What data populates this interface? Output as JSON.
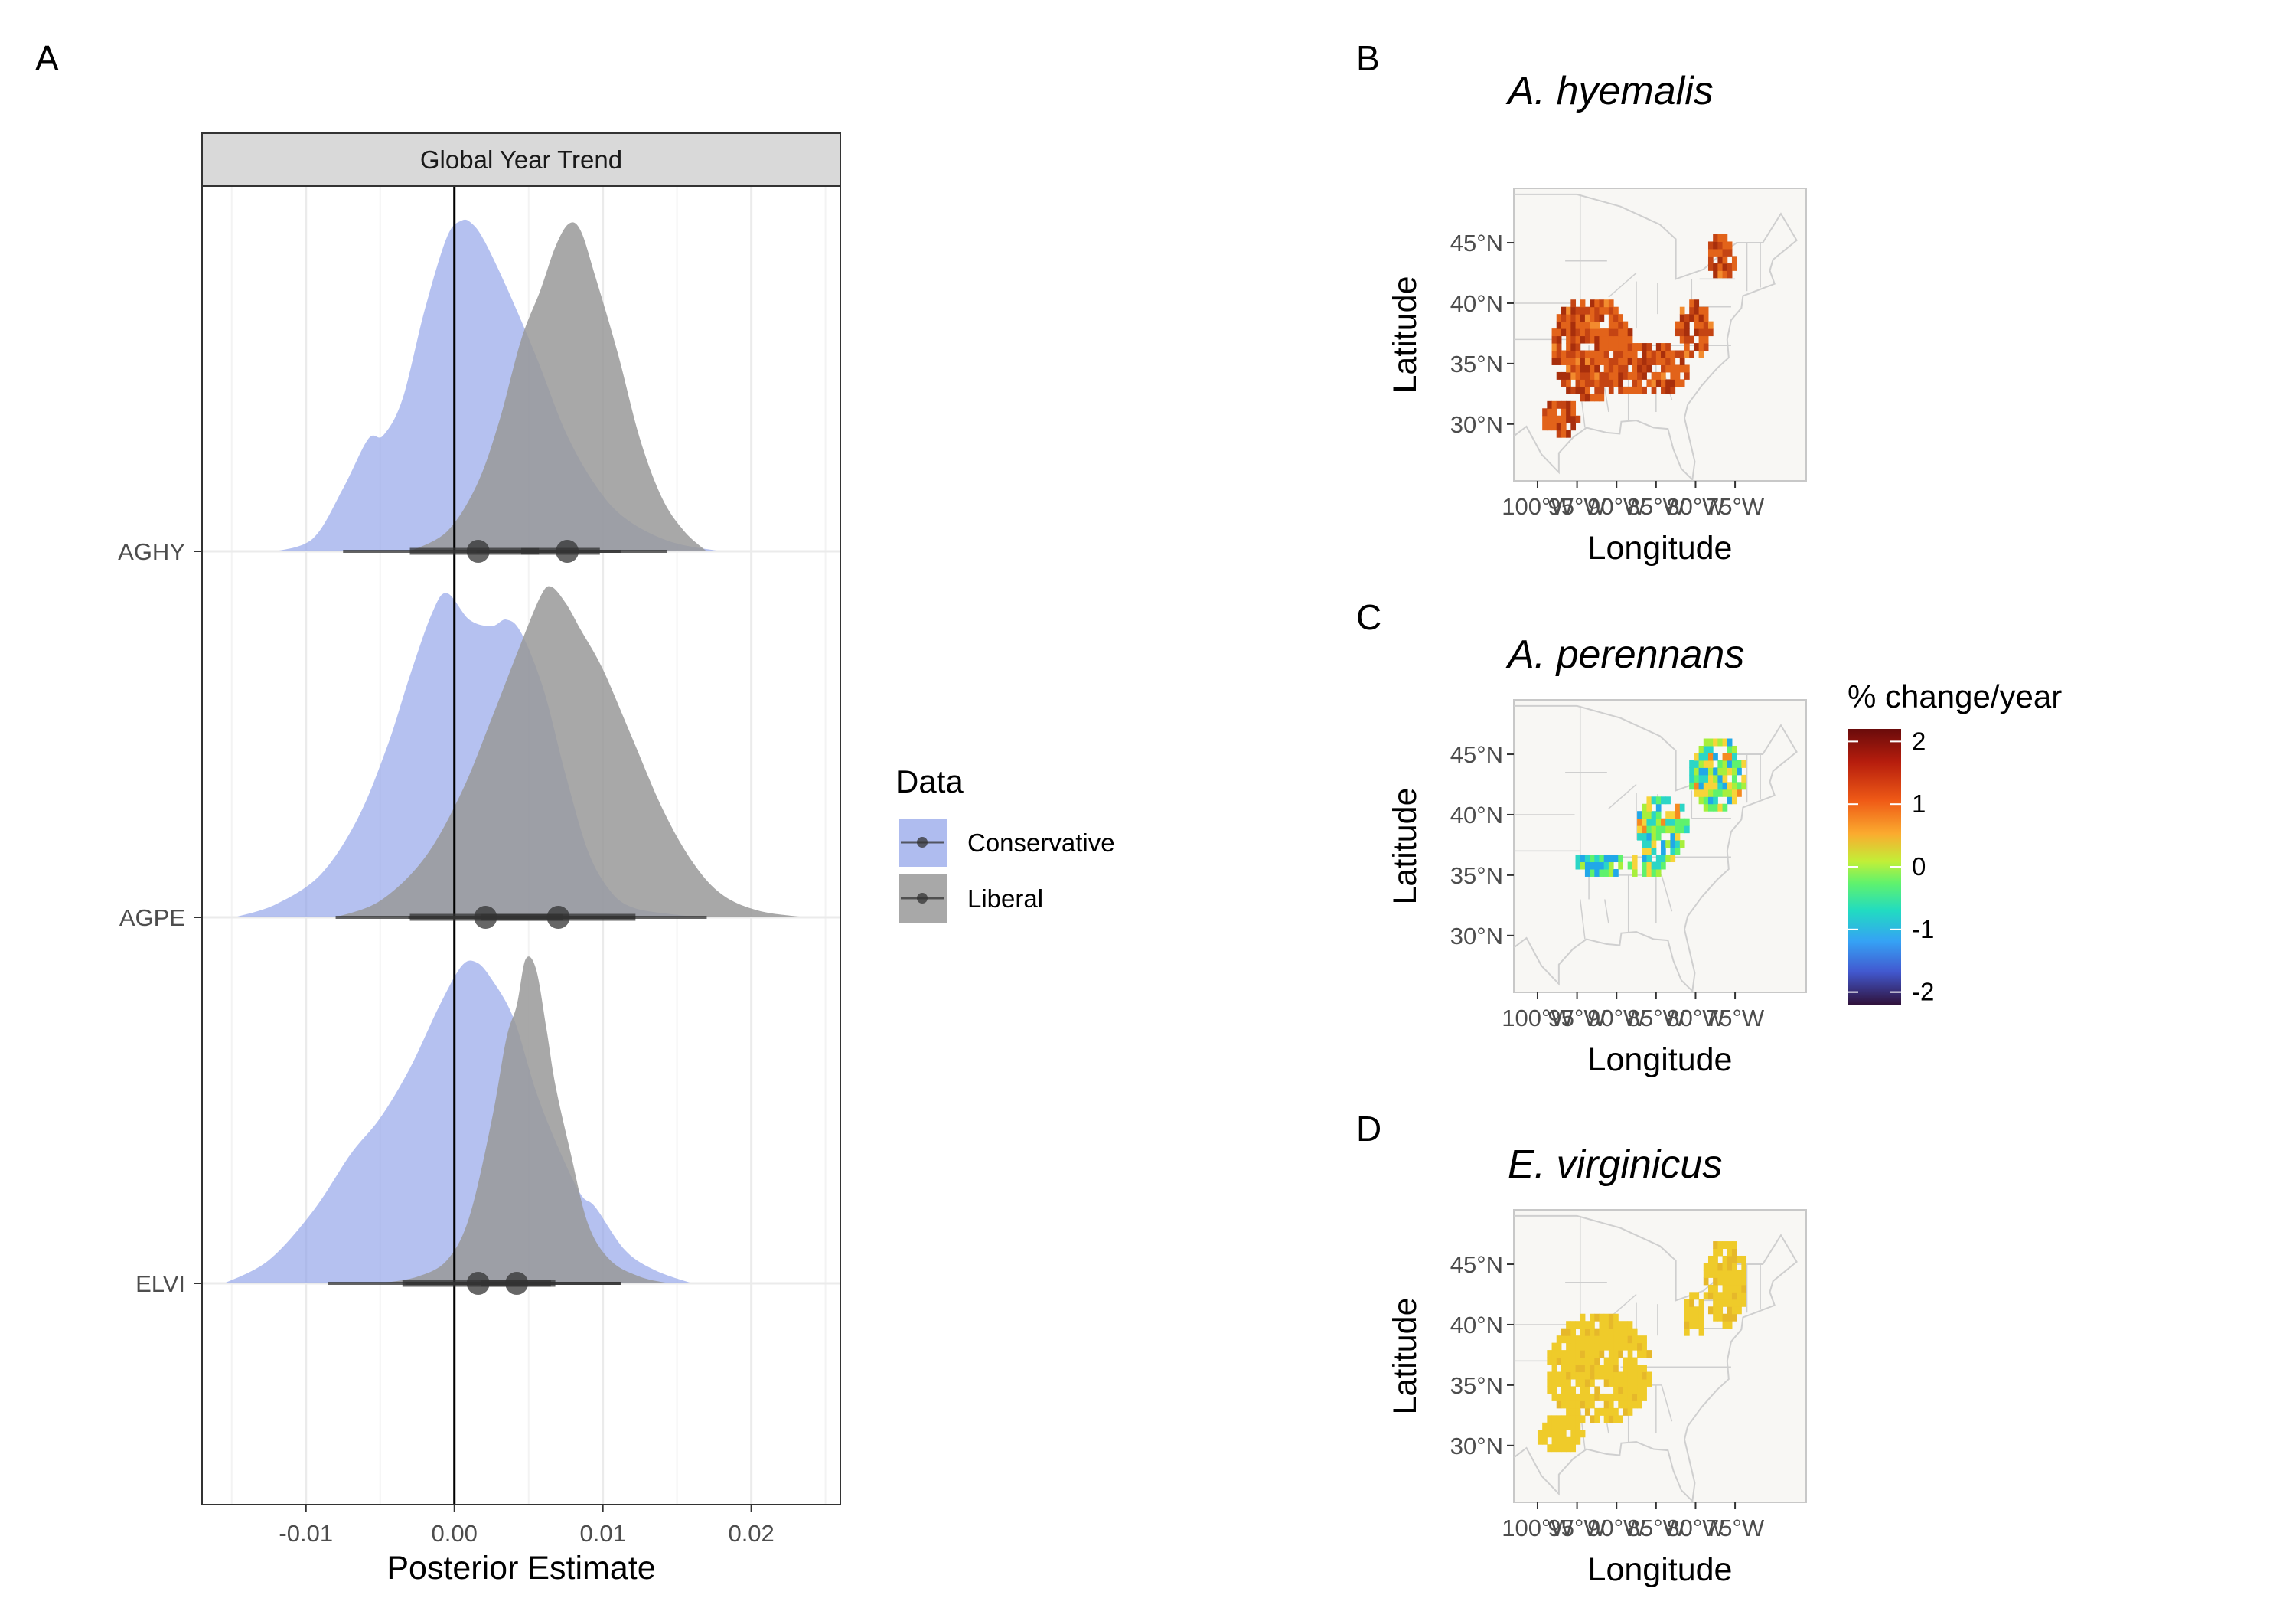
{
  "panels": {
    "a": {
      "letter": "A"
    },
    "b": {
      "letter": "B"
    },
    "c": {
      "letter": "C"
    },
    "d": {
      "letter": "D"
    }
  },
  "chart_data": [
    {
      "panel": "A",
      "type": "density-ridge",
      "strip_label": "Global Year Trend",
      "xlabel": "Posterior Estimate",
      "ylabel": "",
      "xlim": [
        -0.017,
        0.026
      ],
      "x_ticks": [
        -0.01,
        0.0,
        0.01,
        0.02
      ],
      "x_tick_labels": [
        "-0.01",
        "0.00",
        "0.01",
        "0.02"
      ],
      "categories": [
        "AGHY",
        "AGPE",
        "ELVI"
      ],
      "reference_line_x": 0,
      "grid": true,
      "legend": {
        "title": "Data",
        "position": "right"
      },
      "series": [
        {
          "name": "Conservative",
          "color": "#8da0e8",
          "densities": {
            "AGHY": {
              "x": [
                -0.012,
                -0.0095,
                -0.0075,
                -0.0058,
                -0.0048,
                -0.0035,
                -0.002,
                -0.0005,
                0.0005,
                0.0012,
                0.002,
                0.0035,
                0.0055,
                0.0075,
                0.0095,
                0.0115,
                0.0145,
                0.018
              ],
              "h": [
                0.0,
                0.04,
                0.19,
                0.34,
                0.35,
                0.46,
                0.73,
                0.95,
                1.0,
                0.99,
                0.94,
                0.8,
                0.59,
                0.36,
                0.2,
                0.1,
                0.03,
                0.0
              ]
            },
            "AGPE": {
              "x": [
                -0.0148,
                -0.012,
                -0.009,
                -0.0065,
                -0.0045,
                -0.003,
                -0.0015,
                -0.0005,
                0.001,
                0.0025,
                0.0035,
                0.0045,
                0.006,
                0.0075,
                0.009,
                0.0105,
                0.012,
                0.0145,
                0.017
              ],
              "h": [
                0.0,
                0.04,
                0.13,
                0.3,
                0.52,
                0.73,
                0.92,
                0.98,
                0.9,
                0.88,
                0.9,
                0.86,
                0.69,
                0.43,
                0.2,
                0.08,
                0.03,
                0.01,
                0.0
              ]
            },
            "ELVI": {
              "x": [
                -0.0155,
                -0.0125,
                -0.0095,
                -0.007,
                -0.005,
                -0.003,
                -0.001,
                0.0005,
                0.0015,
                0.0025,
                0.004,
                0.0055,
                0.007,
                0.0085,
                0.0095,
                0.0115,
                0.0135,
                0.016
              ],
              "h": [
                0.0,
                0.07,
                0.22,
                0.39,
                0.5,
                0.65,
                0.84,
                0.96,
                0.97,
                0.92,
                0.8,
                0.58,
                0.41,
                0.27,
                0.23,
                0.1,
                0.04,
                0.0
              ]
            }
          },
          "interval": {
            "AGHY": {
              "point": 0.0016,
              "inner": [
                -0.003,
                0.0057
              ],
              "outer": [
                -0.0075,
                0.0112
              ]
            },
            "AGPE": {
              "point": 0.0021,
              "inner": [
                -0.003,
                0.0073
              ],
              "outer": [
                -0.008,
                0.0122
              ]
            },
            "ELVI": {
              "point": 0.0016,
              "inner": [
                -0.0035,
                0.0068
              ],
              "outer": [
                -0.0085,
                0.0112
              ]
            }
          }
        },
        {
          "name": "Liberal",
          "color": "#999999",
          "densities": {
            "AGHY": {
              "x": [
                -0.003,
                -0.0005,
                0.0015,
                0.003,
                0.0045,
                0.0058,
                0.0068,
                0.0077,
                0.0085,
                0.0095,
                0.011,
                0.0125,
                0.014,
                0.0155,
                0.017
              ],
              "h": [
                0.0,
                0.06,
                0.2,
                0.39,
                0.64,
                0.79,
                0.92,
                0.99,
                0.97,
                0.83,
                0.6,
                0.34,
                0.16,
                0.06,
                0.0
              ]
            },
            "AGPE": {
              "x": [
                -0.008,
                -0.005,
                -0.002,
                0.0005,
                0.0025,
                0.0045,
                0.0058,
                0.0065,
                0.0075,
                0.0085,
                0.01,
                0.012,
                0.014,
                0.016,
                0.018,
                0.0205,
                0.0237
              ],
              "h": [
                0.0,
                0.05,
                0.18,
                0.38,
                0.6,
                0.83,
                0.97,
                1.0,
                0.95,
                0.87,
                0.75,
                0.54,
                0.33,
                0.17,
                0.07,
                0.02,
                0.0
              ]
            },
            "ELVI": {
              "x": [
                -0.005,
                -0.0025,
                -0.0005,
                0.001,
                0.0025,
                0.0035,
                0.0042,
                0.0048,
                0.0055,
                0.0062,
                0.0068,
                0.0078,
                0.009,
                0.0105,
                0.0125,
                0.0145
              ],
              "h": [
                0.0,
                0.02,
                0.07,
                0.2,
                0.49,
                0.74,
                0.84,
                0.98,
                0.95,
                0.77,
                0.6,
                0.4,
                0.18,
                0.07,
                0.02,
                0.0
              ]
            }
          },
          "interval": {
            "AGHY": {
              "point": 0.0076,
              "inner": [
                0.0045,
                0.0098
              ],
              "outer": [
                0.0015,
                0.0143
              ]
            },
            "AGPE": {
              "point": 0.007,
              "inner": [
                0.0018,
                0.0122
              ],
              "outer": [
                -0.0031,
                0.017
              ]
            },
            "ELVI": {
              "point": 0.0042,
              "inner": [
                0.0018,
                0.0065
              ],
              "outer": [
                -0.0033,
                0.0112
              ]
            }
          }
        }
      ]
    },
    {
      "panel": "B",
      "type": "heatmap",
      "title": "A. hyemalis",
      "xlabel": "Longitude",
      "ylabel": "Latitude",
      "x_ticks": [
        "100°W",
        "95°W",
        "90°W",
        "85°W",
        "80°W",
        "75°W"
      ],
      "y_ticks": [
        "30°N",
        "35°N",
        "40°N",
        "45°N"
      ]
    },
    {
      "panel": "C",
      "type": "heatmap",
      "title": "A. perennans",
      "xlabel": "Longitude",
      "ylabel": "Latitude",
      "x_ticks": [
        "100°W",
        "95°W",
        "90°W",
        "85°W",
        "80°W",
        "75°W"
      ],
      "y_ticks": [
        "30°N",
        "35°N",
        "40°N",
        "45°N"
      ],
      "colorbar": {
        "title": "% change/year",
        "ticks": [
          "2",
          "1",
          "0",
          "-1",
          "-2"
        ],
        "range": [
          -2.2,
          2.2
        ]
      }
    },
    {
      "panel": "D",
      "type": "heatmap",
      "title": "E. virginicus",
      "xlabel": "Longitude",
      "ylabel": "Latitude",
      "x_ticks": [
        "100°W",
        "95°W",
        "90°W",
        "85°W",
        "80°W",
        "75°W"
      ],
      "y_ticks": [
        "30°N",
        "35°N",
        "40°N",
        "45°N"
      ]
    }
  ],
  "colors": {
    "map_background": "#f8f7f4",
    "map_border": "#c8c8c8",
    "map_lines": "#cfcfcf",
    "hyemalis_cell": "#e2631a",
    "virginicus_cell": "#efcb2a",
    "strip_fill": "#d9d9d9",
    "grid": "#ebebeb"
  }
}
